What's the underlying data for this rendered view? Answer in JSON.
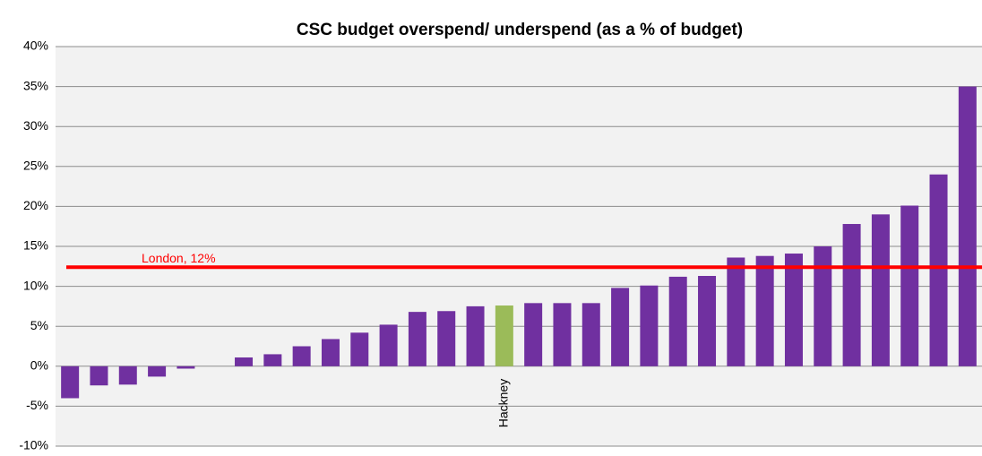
{
  "chart_data": {
    "type": "bar",
    "title": "CSC budget overspend/ underspend (as a % of budget)",
    "categories": [
      null,
      null,
      null,
      null,
      null,
      null,
      null,
      null,
      null,
      null,
      null,
      null,
      null,
      null,
      null,
      "Hackney",
      null,
      null,
      null,
      null,
      null,
      null,
      null,
      null,
      null,
      null,
      null,
      null,
      null,
      null,
      null,
      null
    ],
    "values": [
      -4.0,
      -2.4,
      -2.3,
      -1.3,
      -0.3,
      0,
      1.1,
      1.5,
      2.5,
      3.4,
      4.2,
      5.2,
      6.8,
      6.9,
      7.5,
      7.6,
      7.9,
      7.9,
      7.9,
      9.8,
      10.1,
      11.2,
      11.3,
      13.6,
      13.8,
      14.1,
      15.0,
      17.8,
      19.0,
      20.1,
      24.0,
      35.0
    ],
    "colors": [
      "#7030a0",
      "#7030a0",
      "#7030a0",
      "#7030a0",
      "#7030a0",
      "#7030a0",
      "#7030a0",
      "#7030a0",
      "#7030a0",
      "#7030a0",
      "#7030a0",
      "#7030a0",
      "#7030a0",
      "#7030a0",
      "#7030a0",
      "#9bbb59",
      "#7030a0",
      "#7030a0",
      "#7030a0",
      "#7030a0",
      "#7030a0",
      "#7030a0",
      "#7030a0",
      "#7030a0",
      "#7030a0",
      "#7030a0",
      "#7030a0",
      "#7030a0",
      "#7030a0",
      "#7030a0",
      "#7030a0",
      "#7030a0"
    ],
    "ylim": [
      -10,
      40
    ],
    "yticks": [
      {
        "value": -10,
        "label": "-10%"
      },
      {
        "value": -5,
        "label": "-5%"
      },
      {
        "value": 0,
        "label": "0%"
      },
      {
        "value": 5,
        "label": "5%"
      },
      {
        "value": 10,
        "label": "10%"
      },
      {
        "value": 15,
        "label": "15%"
      },
      {
        "value": 20,
        "label": "20%"
      },
      {
        "value": 25,
        "label": "25%"
      },
      {
        "value": 30,
        "label": "30%"
      },
      {
        "value": 35,
        "label": "35%"
      },
      {
        "value": 40,
        "label": "40%"
      }
    ],
    "grid": true,
    "reference_line": {
      "value": 12.4,
      "label": "London, 12%",
      "color": "#ff0000"
    }
  }
}
